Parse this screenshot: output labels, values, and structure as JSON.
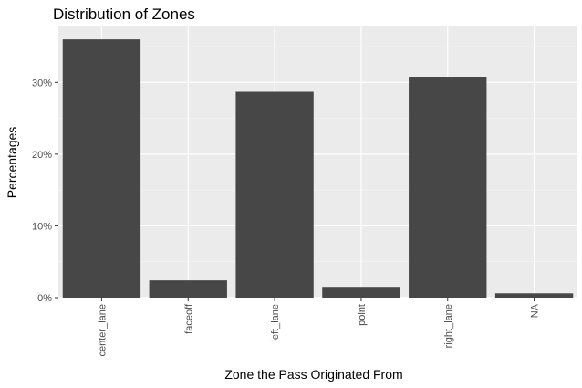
{
  "chart_data": {
    "type": "bar",
    "title": "Distribution of Zones",
    "xlabel": "Zone the Pass Originated From",
    "ylabel": "Percentages",
    "categories": [
      "center_lane",
      "faceoff",
      "left_lane",
      "point",
      "right_lane",
      "NA"
    ],
    "values": [
      36.0,
      2.4,
      28.7,
      1.5,
      30.8,
      0.6
    ],
    "value_unit": "%",
    "ylim": [
      0,
      37.8
    ],
    "yticks": [
      0,
      10,
      20,
      30
    ],
    "ytick_labels": [
      "0%",
      "10%",
      "20%",
      "30%"
    ],
    "grid": true,
    "legend": "none",
    "colors": {
      "bar": "#474747",
      "panel": "#ebebeb",
      "grid_major": "#ffffff",
      "grid_minor": "#f5f5f5",
      "tick_text": "#4d4d4d"
    }
  }
}
